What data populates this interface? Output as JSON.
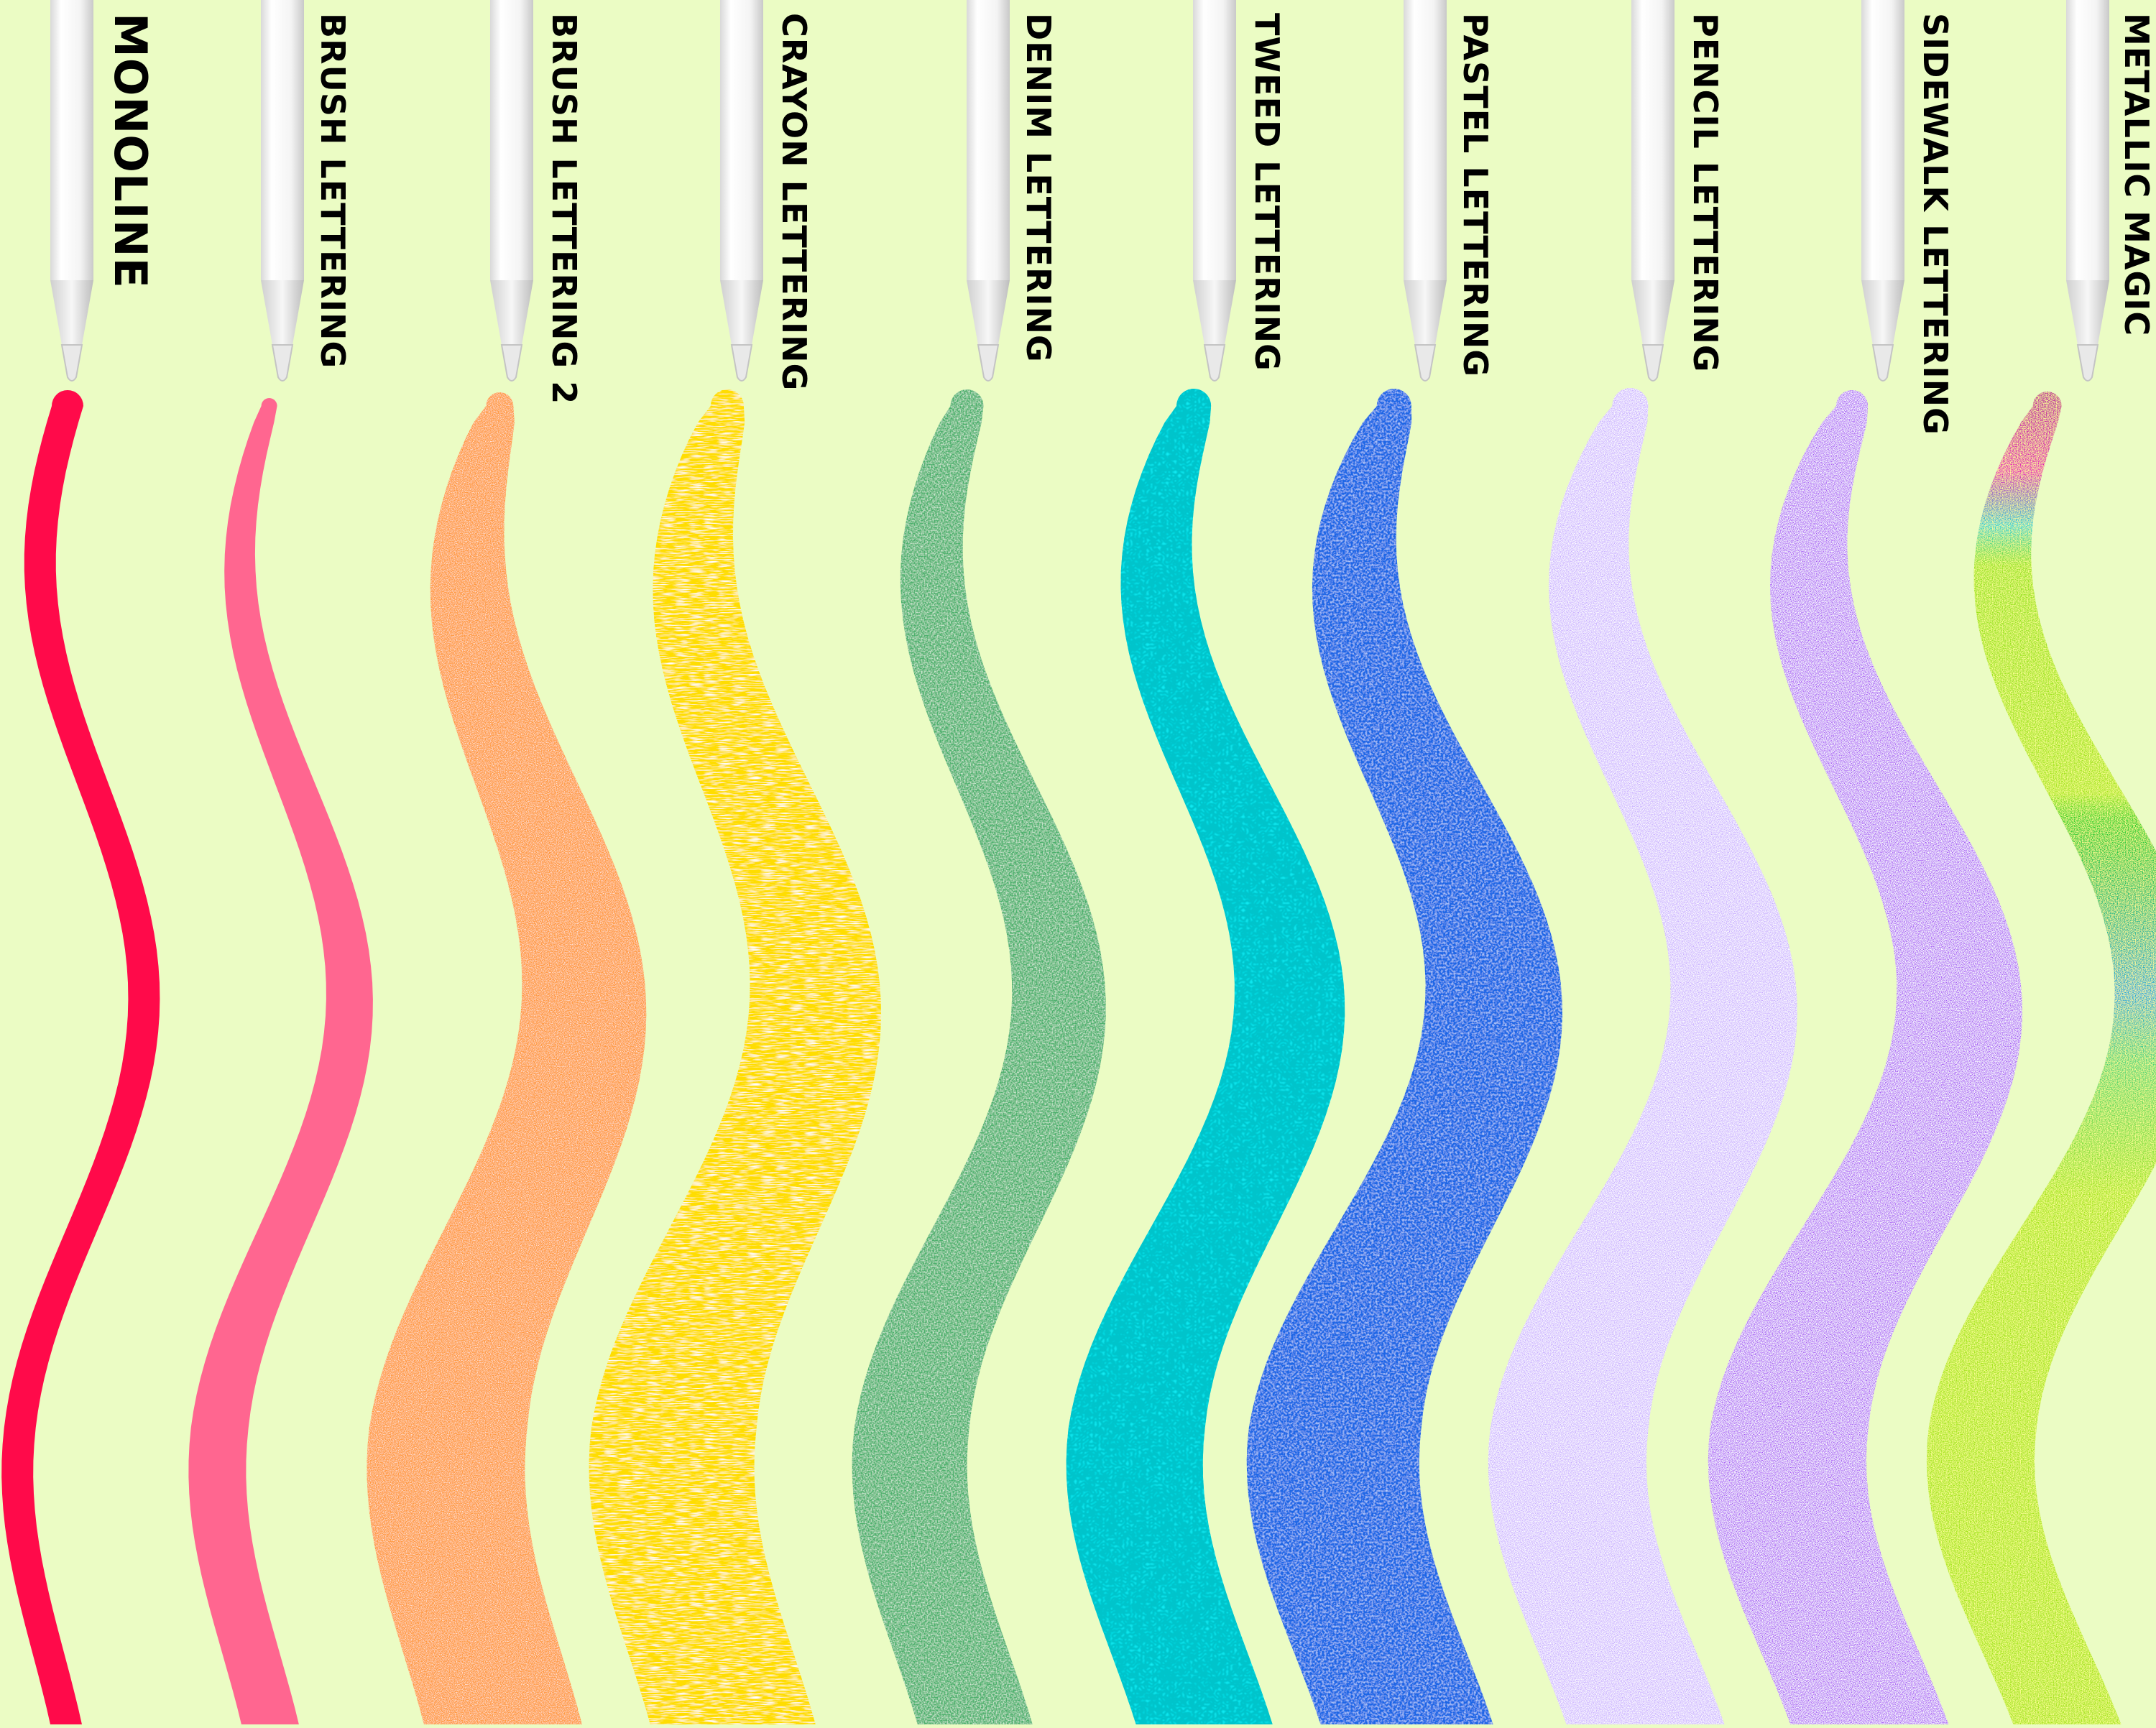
{
  "background_color": "#ebfcc4",
  "brushes": [
    {
      "label": "Monoline",
      "color": "#ff0a4a",
      "texture": "solid"
    },
    {
      "label": "Brush Lettering",
      "color": "#ff6690",
      "texture": "solid"
    },
    {
      "label": "Brush Lettering 2",
      "color": "#ff9a40",
      "texture": "grain"
    },
    {
      "label": "Crayon Lettering",
      "color": "#ffdd00",
      "texture": "streaks"
    },
    {
      "label": "Denim Lettering",
      "color": "#4cb06c",
      "texture": "canvas"
    },
    {
      "label": "Tweed Lettering",
      "color": "#18eaf2",
      "texture": "weave"
    },
    {
      "label": "Pastel Lettering",
      "color": "#1d66e6",
      "texture": "chalk"
    },
    {
      "label": "Pencil Lettering",
      "color": "#c2a4ff",
      "texture": "speckle"
    },
    {
      "label": "Sidewalk Lettering",
      "color": "#9b3ff2",
      "texture": "speckle"
    },
    {
      "label": "Metallic Magic",
      "color": "#a6e51b",
      "texture": "metallic",
      "gradient": [
        "#b51e9b",
        "#e61fb8",
        "#1fd0d8",
        "#95e21a",
        "#a6e51b",
        "#1fce26",
        "#25a8dc",
        "#4ad47c",
        "#a6e51b"
      ]
    }
  ],
  "pencil_icon": "apple-pencil-icon"
}
